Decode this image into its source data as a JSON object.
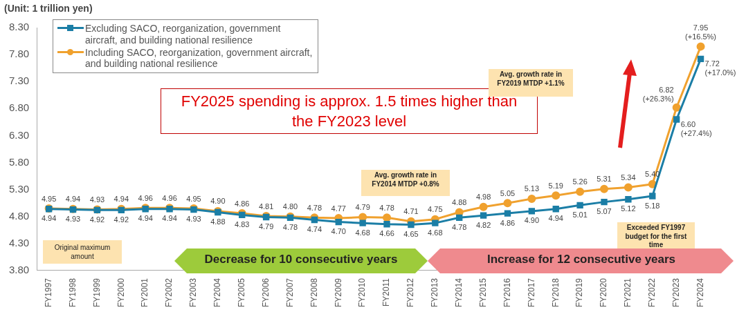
{
  "chart_data": {
    "type": "line",
    "categories": [
      "FY1997",
      "FY1998",
      "FY1999",
      "FY2000",
      "FY2001",
      "FY2002",
      "FY2003",
      "FY2004",
      "FY2005",
      "FY2006",
      "FY2007",
      "FY2008",
      "FY2009",
      "FY2010",
      "FY2011",
      "FY2012",
      "FY2013",
      "FY2014",
      "FY2015",
      "FY2016",
      "FY2017",
      "FY2018",
      "FY2019",
      "FY2020",
      "FY2021",
      "FY2022",
      "FY2023",
      "FY2024"
    ],
    "series": [
      {
        "name": "Excluding SACO, reorganization, government aircraft, and building national resilience",
        "color": "#1b7ea6",
        "marker": "square",
        "values": [
          4.94,
          4.93,
          4.92,
          4.92,
          4.94,
          4.94,
          4.93,
          4.88,
          4.83,
          4.79,
          4.78,
          4.74,
          4.7,
          4.68,
          4.66,
          4.65,
          4.68,
          4.78,
          4.82,
          4.86,
          4.9,
          4.94,
          5.01,
          5.07,
          5.12,
          5.18,
          6.6,
          7.72
        ],
        "value_labels": [
          "4.94",
          "4.93",
          "4.92",
          "4.92",
          "4.94",
          "4.94",
          "4.93",
          "4.88",
          "4.83",
          "4.79",
          "4.78",
          "4.74",
          "4.70",
          "4.68",
          "4.66",
          "4.65",
          "4.68",
          "4.78",
          "4.82",
          "4.86",
          "4.90",
          "4.94",
          "5.01",
          "5.07",
          "5.12",
          "5.18",
          "6.60 (+27.4%)",
          "7.72 (+17.0%)"
        ]
      },
      {
        "name": "Including SACO, reorganization, government aircraft, and building national resilience",
        "color": "#f0a12e",
        "marker": "circle",
        "values": [
          4.95,
          4.94,
          4.93,
          4.94,
          4.96,
          4.96,
          4.95,
          4.9,
          4.86,
          4.81,
          4.8,
          4.78,
          4.77,
          4.79,
          4.78,
          4.71,
          4.75,
          4.88,
          4.98,
          5.05,
          5.13,
          5.19,
          5.26,
          5.31,
          5.34,
          5.4,
          6.82,
          7.95
        ],
        "value_labels": [
          "4.95",
          "4.94",
          "4.93",
          "4.94",
          "4.96",
          "4.96",
          "4.95",
          "4.90",
          "4.86",
          "4.81",
          "4.80",
          "4.78",
          "4.77",
          "4.79",
          "4.78",
          "4.71",
          "4.75",
          "4.88",
          "4.98",
          "5.05",
          "5.13",
          "5.19",
          "5.26",
          "5.31",
          "5.34",
          "5.40",
          "6.82 (+26.3%)",
          "7.95 (+16.5%)"
        ]
      }
    ],
    "ylim": [
      3.8,
      8.3
    ],
    "yticks": [
      {
        "value": 3.8,
        "label": "3.80"
      },
      {
        "value": 4.3,
        "label": "4.30"
      },
      {
        "value": 4.8,
        "label": "4.80"
      },
      {
        "value": 5.3,
        "label": "5.30"
      },
      {
        "value": 5.8,
        "label": "5.80"
      },
      {
        "value": 6.3,
        "label": "6.30"
      },
      {
        "value": 6.8,
        "label": "6.80"
      },
      {
        "value": 7.3,
        "label": "7.30"
      },
      {
        "value": 7.8,
        "label": "7.80"
      },
      {
        "value": 8.3,
        "label": "8.30"
      }
    ],
    "grid": false,
    "legend": "top left",
    "annotations": [
      "(Unit: 1 trillion yen)",
      "FY2025 spending is approx. 1.5 times higher than the FY2023 level",
      "Avg. growth rate in FY2014 MTDP +0.8%",
      "Avg. growth rate in FY2019 MTDP +1.1%",
      "Exceeded FY1997 budget for the first time",
      "Original maximum amount",
      "Decrease for 10 consecutive years",
      "Increase for 12 consecutive years"
    ]
  }
}
